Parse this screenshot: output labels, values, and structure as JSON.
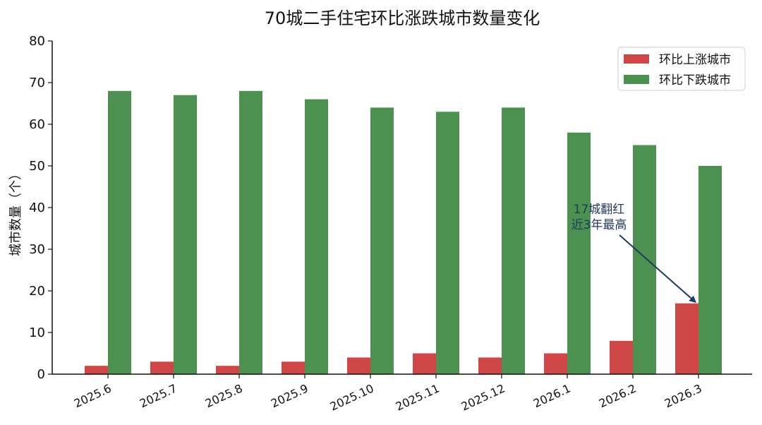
{
  "chart_data": {
    "type": "bar",
    "title": "70城二手住宅环比涨跌城市数量变化",
    "xlabel": "",
    "ylabel": "城市数量（个）",
    "categories": [
      "2025.6",
      "2025.7",
      "2025.8",
      "2025.9",
      "2025.10",
      "2025.11",
      "2025.12",
      "2026.1",
      "2026.2",
      "2026.3"
    ],
    "series": [
      {
        "name": "环比上涨城市",
        "color": "#d04545",
        "values": [
          2,
          3,
          2,
          3,
          4,
          5,
          4,
          5,
          8,
          17
        ]
      },
      {
        "name": "环比下跌城市",
        "color": "#4d9150",
        "values": [
          68,
          67,
          68,
          66,
          64,
          63,
          64,
          58,
          55,
          50
        ]
      }
    ],
    "ylim": [
      0,
      80
    ],
    "yticks": [
      0,
      10,
      20,
      30,
      40,
      50,
      60,
      70,
      80
    ],
    "grid": false,
    "legend_position": "top-right",
    "annotation": {
      "lines": [
        "17城翻红",
        "近3年最高"
      ],
      "target_category": "2026.3",
      "target_series": "环比上涨城市",
      "target_value": 17,
      "color": "#1f3a5f"
    }
  }
}
